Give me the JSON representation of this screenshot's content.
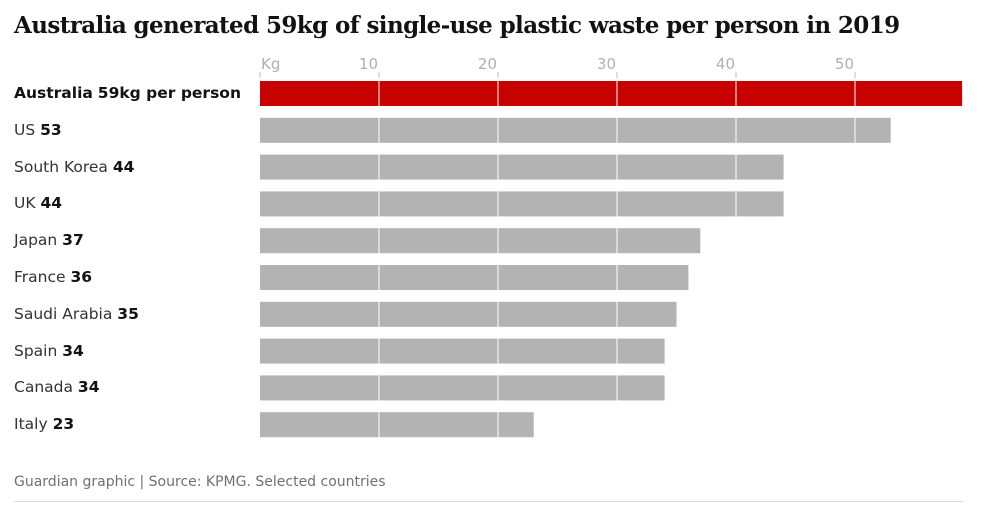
{
  "chart_data": {
    "type": "bar",
    "orientation": "horizontal",
    "title": "Australia generated 59kg of single-use plastic waste per person in 2019",
    "xlabel": "Kg",
    "xlim": [
      0,
      59
    ],
    "ticks": [
      0,
      10,
      20,
      30,
      40,
      50
    ],
    "tick_labels": [
      "Kg",
      "10",
      "20",
      "30",
      "40",
      "50"
    ],
    "grid": true,
    "categories": [
      "Australia",
      "US",
      "South Korea",
      "UK",
      "Japan",
      "France",
      "Saudi Arabia",
      "Spain",
      "Canada",
      "Italy"
    ],
    "values": [
      59,
      53,
      44,
      44,
      37,
      36,
      35,
      34,
      34,
      23
    ],
    "value_labels": [
      "59kg per person",
      "53",
      "44",
      "44",
      "37",
      "36",
      "35",
      "34",
      "34",
      "23"
    ],
    "highlight_index": 0,
    "colors": {
      "highlight": "#c70000",
      "default": "#b3b3b4",
      "grid": "#ffffff",
      "tick": "#bdbdbd"
    }
  },
  "source": "Guardian graphic | Source: KPMG. Selected countries"
}
